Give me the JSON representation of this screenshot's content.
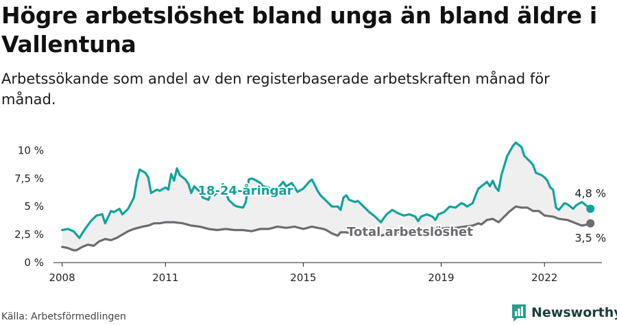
{
  "header": {
    "title": "Högre arbetslöshet bland unga än bland äldre i Vallentuna",
    "subtitle": "Arbetssökande som andel av den registerbaserade arbetskraften månad för månad."
  },
  "footer": {
    "source": "Källa: Arbetsförmedlingen",
    "brand": "Newsworthy"
  },
  "colors": {
    "youth": "#0fa39a",
    "total": "#6b6b70",
    "band": "#e9e9eb",
    "axis": "#222222"
  },
  "chart_data": {
    "type": "line",
    "x_ticks": [
      "2008",
      "2011",
      "2015",
      "2019",
      "2022"
    ],
    "y_ticks": [
      "0 %",
      "2,5 %",
      "5 %",
      "7,5 %",
      "10 %"
    ],
    "ylim": [
      0,
      11
    ],
    "xlim": [
      "2007-10",
      "2023-09"
    ],
    "grid": false,
    "series": [
      {
        "name": "18-24-åringar",
        "end_label": "4,8 %",
        "points": [
          [
            "2008-01",
            2.9
          ],
          [
            "2008-03",
            3.0
          ],
          [
            "2008-05",
            2.8
          ],
          [
            "2008-07",
            2.2
          ],
          [
            "2008-09",
            3.0
          ],
          [
            "2008-11",
            3.7
          ],
          [
            "2009-01",
            4.2
          ],
          [
            "2009-03",
            4.3
          ],
          [
            "2009-04",
            3.5
          ],
          [
            "2009-06",
            4.6
          ],
          [
            "2009-07",
            4.5
          ],
          [
            "2009-09",
            4.8
          ],
          [
            "2009-10",
            4.3
          ],
          [
            "2009-12",
            4.8
          ],
          [
            "2010-02",
            5.8
          ],
          [
            "2010-03",
            7.3
          ],
          [
            "2010-04",
            8.3
          ],
          [
            "2010-06",
            8.0
          ],
          [
            "2010-07",
            7.6
          ],
          [
            "2010-08",
            6.2
          ],
          [
            "2010-10",
            6.5
          ],
          [
            "2010-11",
            6.4
          ],
          [
            "2011-01",
            6.7
          ],
          [
            "2011-02",
            6.5
          ],
          [
            "2011-03",
            7.9
          ],
          [
            "2011-04",
            7.3
          ],
          [
            "2011-05",
            8.4
          ],
          [
            "2011-06",
            7.8
          ],
          [
            "2011-08",
            7.4
          ],
          [
            "2011-09",
            7.0
          ],
          [
            "2011-10",
            6.2
          ],
          [
            "2011-11",
            6.8
          ],
          [
            "2012-01",
            6.3
          ],
          [
            "2012-02",
            5.8
          ],
          [
            "2012-04",
            5.6
          ],
          [
            "2012-05",
            6.3
          ],
          [
            "2012-06",
            6.0
          ],
          [
            "2012-08",
            6.5
          ],
          [
            "2012-09",
            7.0
          ],
          [
            "2012-10",
            6.3
          ],
          [
            "2012-11",
            5.6
          ],
          [
            "2013-01",
            5.1
          ],
          [
            "2013-02",
            5.0
          ],
          [
            "2013-04",
            4.9
          ],
          [
            "2013-05",
            5.4
          ],
          [
            "2013-06",
            7.4
          ],
          [
            "2013-07",
            7.5
          ],
          [
            "2013-08",
            7.4
          ],
          [
            "2013-10",
            7.1
          ],
          [
            "2013-11",
            6.8
          ],
          [
            "2014-01",
            6.7
          ],
          [
            "2014-03",
            5.8
          ],
          [
            "2014-04",
            6.6
          ],
          [
            "2014-06",
            7.2
          ],
          [
            "2014-07",
            6.8
          ],
          [
            "2014-09",
            7.1
          ],
          [
            "2014-11",
            6.3
          ],
          [
            "2015-01",
            6.6
          ],
          [
            "2015-03",
            7.2
          ],
          [
            "2015-04",
            7.4
          ],
          [
            "2015-06",
            6.4
          ],
          [
            "2015-07",
            6.0
          ],
          [
            "2015-09",
            5.5
          ],
          [
            "2015-11",
            5.0
          ],
          [
            "2016-01",
            5.0
          ],
          [
            "2016-02",
            4.7
          ],
          [
            "2016-03",
            5.8
          ],
          [
            "2016-04",
            6.0
          ],
          [
            "2016-05",
            5.6
          ],
          [
            "2016-07",
            5.4
          ],
          [
            "2016-08",
            5.5
          ],
          [
            "2016-10",
            5.0
          ],
          [
            "2016-12",
            4.5
          ],
          [
            "2017-02",
            4.1
          ],
          [
            "2017-04",
            3.6
          ],
          [
            "2017-06",
            4.3
          ],
          [
            "2017-08",
            4.7
          ],
          [
            "2017-10",
            4.4
          ],
          [
            "2017-12",
            4.2
          ],
          [
            "2018-02",
            4.3
          ],
          [
            "2018-04",
            4.1
          ],
          [
            "2018-05",
            3.7
          ],
          [
            "2018-06",
            4.1
          ],
          [
            "2018-08",
            4.3
          ],
          [
            "2018-10",
            4.1
          ],
          [
            "2018-11",
            3.8
          ],
          [
            "2018-12",
            4.3
          ],
          [
            "2019-02",
            4.5
          ],
          [
            "2019-04",
            5.0
          ],
          [
            "2019-06",
            4.9
          ],
          [
            "2019-08",
            5.3
          ],
          [
            "2019-09",
            5.2
          ],
          [
            "2019-10",
            5.0
          ],
          [
            "2019-12",
            5.3
          ],
          [
            "2020-01",
            6.0
          ],
          [
            "2020-02",
            6.6
          ],
          [
            "2020-03",
            6.8
          ],
          [
            "2020-05",
            7.2
          ],
          [
            "2020-06",
            6.8
          ],
          [
            "2020-07",
            7.3
          ],
          [
            "2020-08",
            6.7
          ],
          [
            "2020-09",
            6.4
          ],
          [
            "2020-10",
            7.8
          ],
          [
            "2020-12",
            9.5
          ],
          [
            "2021-02",
            10.4
          ],
          [
            "2021-03",
            10.7
          ],
          [
            "2021-05",
            10.3
          ],
          [
            "2021-06",
            9.5
          ],
          [
            "2021-08",
            9.0
          ],
          [
            "2021-09",
            8.7
          ],
          [
            "2021-10",
            8.0
          ],
          [
            "2021-12",
            7.8
          ],
          [
            "2022-01",
            7.6
          ],
          [
            "2022-02",
            7.3
          ],
          [
            "2022-03",
            6.7
          ],
          [
            "2022-04",
            6.5
          ],
          [
            "2022-05",
            4.9
          ],
          [
            "2022-06",
            4.7
          ],
          [
            "2022-08",
            5.3
          ],
          [
            "2022-09",
            5.2
          ],
          [
            "2022-11",
            4.8
          ],
          [
            "2022-12",
            5.1
          ],
          [
            "2023-02",
            5.4
          ],
          [
            "2023-03",
            5.2
          ],
          [
            "2023-05",
            4.8
          ]
        ]
      },
      {
        "name": "Total arbetslöshet",
        "end_label": "3,5 %",
        "points": [
          [
            "2008-01",
            1.4
          ],
          [
            "2008-03",
            1.3
          ],
          [
            "2008-05",
            1.1
          ],
          [
            "2008-06",
            1.1
          ],
          [
            "2008-08",
            1.4
          ],
          [
            "2008-10",
            1.6
          ],
          [
            "2008-12",
            1.5
          ],
          [
            "2009-02",
            1.9
          ],
          [
            "2009-04",
            2.1
          ],
          [
            "2009-06",
            2.0
          ],
          [
            "2009-08",
            2.2
          ],
          [
            "2009-10",
            2.5
          ],
          [
            "2009-12",
            2.8
          ],
          [
            "2010-02",
            3.0
          ],
          [
            "2010-05",
            3.2
          ],
          [
            "2010-07",
            3.3
          ],
          [
            "2010-09",
            3.5
          ],
          [
            "2010-11",
            3.5
          ],
          [
            "2011-01",
            3.6
          ],
          [
            "2011-04",
            3.6
          ],
          [
            "2011-07",
            3.5
          ],
          [
            "2011-10",
            3.3
          ],
          [
            "2012-01",
            3.2
          ],
          [
            "2012-04",
            3.0
          ],
          [
            "2012-07",
            2.9
          ],
          [
            "2012-10",
            3.0
          ],
          [
            "2013-01",
            2.9
          ],
          [
            "2013-04",
            2.9
          ],
          [
            "2013-07",
            2.8
          ],
          [
            "2013-10",
            3.0
          ],
          [
            "2014-01",
            3.0
          ],
          [
            "2014-04",
            3.2
          ],
          [
            "2014-07",
            3.1
          ],
          [
            "2014-10",
            3.2
          ],
          [
            "2015-01",
            3.0
          ],
          [
            "2015-04",
            3.2
          ],
          [
            "2015-06",
            3.1
          ],
          [
            "2015-08",
            3.0
          ],
          [
            "2015-09",
            2.9
          ],
          [
            "2015-11",
            2.6
          ],
          [
            "2016-01",
            2.4
          ],
          [
            "2016-02",
            2.7
          ],
          [
            "2016-04",
            2.7
          ],
          [
            "2016-07",
            2.5
          ],
          [
            "2016-10",
            2.6
          ],
          [
            "2017-01",
            2.4
          ],
          [
            "2017-04",
            2.4
          ],
          [
            "2017-07",
            2.6
          ],
          [
            "2017-10",
            2.7
          ],
          [
            "2017-12",
            2.9
          ],
          [
            "2018-03",
            2.9
          ],
          [
            "2018-06",
            2.9
          ],
          [
            "2018-09",
            3.0
          ],
          [
            "2018-12",
            3.0
          ],
          [
            "2019-03",
            3.1
          ],
          [
            "2019-06",
            3.1
          ],
          [
            "2019-09",
            3.2
          ],
          [
            "2019-12",
            3.3
          ],
          [
            "2020-02",
            3.5
          ],
          [
            "2020-03",
            3.4
          ],
          [
            "2020-05",
            3.8
          ],
          [
            "2020-07",
            3.9
          ],
          [
            "2020-09",
            3.6
          ],
          [
            "2020-11",
            4.1
          ],
          [
            "2021-01",
            4.6
          ],
          [
            "2021-03",
            5.0
          ],
          [
            "2021-05",
            4.9
          ],
          [
            "2021-07",
            4.9
          ],
          [
            "2021-09",
            4.6
          ],
          [
            "2021-11",
            4.6
          ],
          [
            "2022-01",
            4.2
          ],
          [
            "2022-04",
            4.1
          ],
          [
            "2022-06",
            3.9
          ],
          [
            "2022-09",
            3.8
          ],
          [
            "2022-12",
            3.5
          ],
          [
            "2023-02",
            3.3
          ],
          [
            "2023-04",
            3.4
          ],
          [
            "2023-05",
            3.5
          ]
        ]
      }
    ]
  }
}
